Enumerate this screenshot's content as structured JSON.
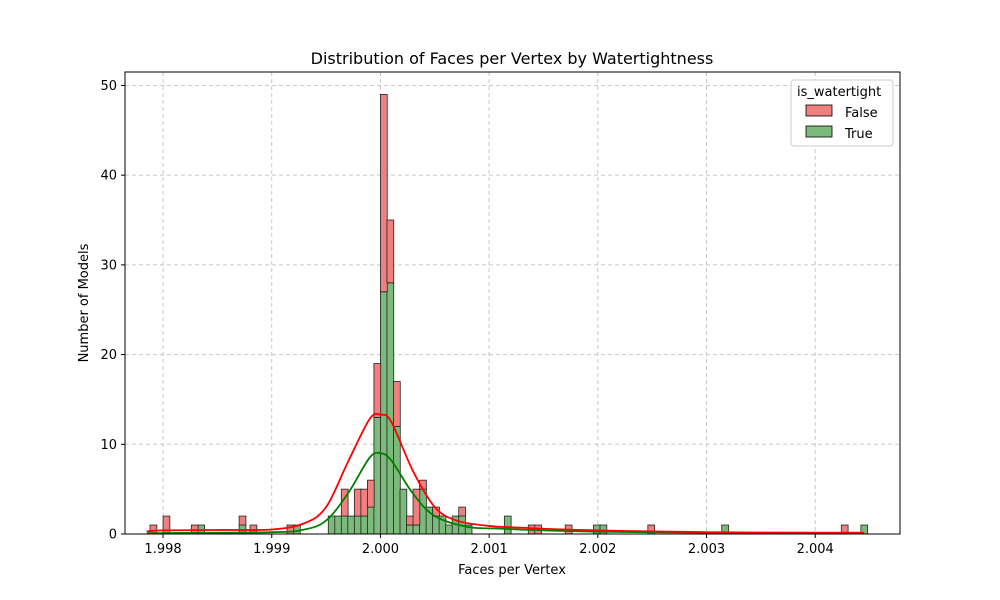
{
  "chart_data": {
    "type": "histogram",
    "title": "Distribution of Faces per Vertex by Watertightness",
    "xlabel": "Faces per Vertex",
    "ylabel": "Number of Models",
    "xlim": [
      1.99765,
      2.00478
    ],
    "ylim": [
      0,
      51.5
    ],
    "x_ticks": [
      "1.998",
      "1.999",
      "2.000",
      "2.001",
      "2.002",
      "2.003",
      "2.004"
    ],
    "x_tick_values": [
      1.998,
      1.999,
      2.0,
      2.001,
      2.002,
      2.003,
      2.004
    ],
    "y_ticks": [
      "0",
      "10",
      "20",
      "30",
      "40",
      "50"
    ],
    "y_tick_values": [
      0,
      10,
      20,
      30,
      40,
      50
    ],
    "bin_width": 6.25e-05,
    "grid": true,
    "stacked": true,
    "legend": {
      "title": "is_watertight",
      "position": "top-right",
      "entries": [
        {
          "label": "False",
          "color": "#f08080"
        },
        {
          "label": "True",
          "color": "#7cba7c"
        }
      ]
    },
    "series": [
      {
        "name": "True",
        "fill": "#7cba7c",
        "kde_color": "#008000",
        "bins": [
          {
            "x": 1.99832,
            "count": 1
          },
          {
            "x": 1.9987,
            "count": 1
          },
          {
            "x": 1.9992,
            "count": 1
          },
          {
            "x": 1.99952,
            "count": 2
          },
          {
            "x": 1.99958,
            "count": 2
          },
          {
            "x": 1.99964,
            "count": 2
          },
          {
            "x": 1.9997,
            "count": 2
          },
          {
            "x": 1.99976,
            "count": 2
          },
          {
            "x": 1.99982,
            "count": 2
          },
          {
            "x": 1.99988,
            "count": 3
          },
          {
            "x": 1.99994,
            "count": 13
          },
          {
            "x": 2.0,
            "count": 27
          },
          {
            "x": 2.00006,
            "count": 28
          },
          {
            "x": 2.00012,
            "count": 12
          },
          {
            "x": 2.00018,
            "count": 5
          },
          {
            "x": 2.00024,
            "count": 1
          },
          {
            "x": 2.0003,
            "count": 1
          },
          {
            "x": 2.00036,
            "count": 5
          },
          {
            "x": 2.00042,
            "count": 3
          },
          {
            "x": 2.00048,
            "count": 2
          },
          {
            "x": 2.00054,
            "count": 2
          },
          {
            "x": 2.0006,
            "count": 1
          },
          {
            "x": 2.00066,
            "count": 2
          },
          {
            "x": 2.00072,
            "count": 2
          },
          {
            "x": 2.00078,
            "count": 1
          },
          {
            "x": 2.00114,
            "count": 2
          },
          {
            "x": 2.00196,
            "count": 1
          },
          {
            "x": 2.00202,
            "count": 1
          },
          {
            "x": 2.00314,
            "count": 1
          },
          {
            "x": 2.00442,
            "count": 1
          }
        ],
        "kde": [
          [
            1.99785,
            0.1
          ],
          [
            1.999,
            0.2
          ],
          [
            1.9993,
            0.5
          ],
          [
            1.9995,
            1.5
          ],
          [
            1.9997,
            4.5
          ],
          [
            1.9999,
            8.5
          ],
          [
            2.0,
            9.0
          ],
          [
            2.0001,
            8.2
          ],
          [
            2.0003,
            4.5
          ],
          [
            2.0005,
            2.0
          ],
          [
            2.0008,
            0.8
          ],
          [
            2.0011,
            0.6
          ],
          [
            2.0015,
            0.4
          ],
          [
            2.002,
            0.25
          ],
          [
            2.003,
            0.15
          ],
          [
            2.00445,
            0.1
          ]
        ]
      },
      {
        "name": "False",
        "fill": "#f08080",
        "kde_color": "#ff0000",
        "bins": [
          {
            "x": 1.99788,
            "count": 1
          },
          {
            "x": 1.998,
            "count": 2
          },
          {
            "x": 1.99826,
            "count": 1
          },
          {
            "x": 1.9987,
            "count": 1
          },
          {
            "x": 1.9988,
            "count": 1
          },
          {
            "x": 1.99914,
            "count": 1
          },
          {
            "x": 1.99964,
            "count": 3
          },
          {
            "x": 1.99976,
            "count": 3
          },
          {
            "x": 1.99982,
            "count": 3
          },
          {
            "x": 1.99988,
            "count": 3
          },
          {
            "x": 1.99994,
            "count": 6
          },
          {
            "x": 2.0,
            "count": 22
          },
          {
            "x": 2.00006,
            "count": 7
          },
          {
            "x": 2.00012,
            "count": 5
          },
          {
            "x": 2.00024,
            "count": 1
          },
          {
            "x": 2.0003,
            "count": 4
          },
          {
            "x": 2.00036,
            "count": 1
          },
          {
            "x": 2.00048,
            "count": 1
          },
          {
            "x": 2.00072,
            "count": 1
          },
          {
            "x": 2.00136,
            "count": 1
          },
          {
            "x": 2.00142,
            "count": 1
          },
          {
            "x": 2.0017,
            "count": 1
          },
          {
            "x": 2.00246,
            "count": 1
          },
          {
            "x": 2.00424,
            "count": 1
          }
        ],
        "kde": [
          [
            1.99785,
            0.3
          ],
          [
            1.998,
            0.4
          ],
          [
            1.9985,
            0.45
          ],
          [
            1.999,
            0.5
          ],
          [
            1.9993,
            1.2
          ],
          [
            1.9995,
            3.0
          ],
          [
            1.9997,
            8.0
          ],
          [
            1.9999,
            12.8
          ],
          [
            2.0,
            13.3
          ],
          [
            2.0001,
            12.5
          ],
          [
            2.0003,
            7.0
          ],
          [
            2.0005,
            3.0
          ],
          [
            2.0007,
            1.5
          ],
          [
            2.001,
            0.9
          ],
          [
            2.0013,
            0.7
          ],
          [
            2.0017,
            0.5
          ],
          [
            2.0022,
            0.35
          ],
          [
            2.003,
            0.2
          ],
          [
            2.004,
            0.15
          ],
          [
            2.00445,
            0.15
          ]
        ]
      }
    ]
  }
}
